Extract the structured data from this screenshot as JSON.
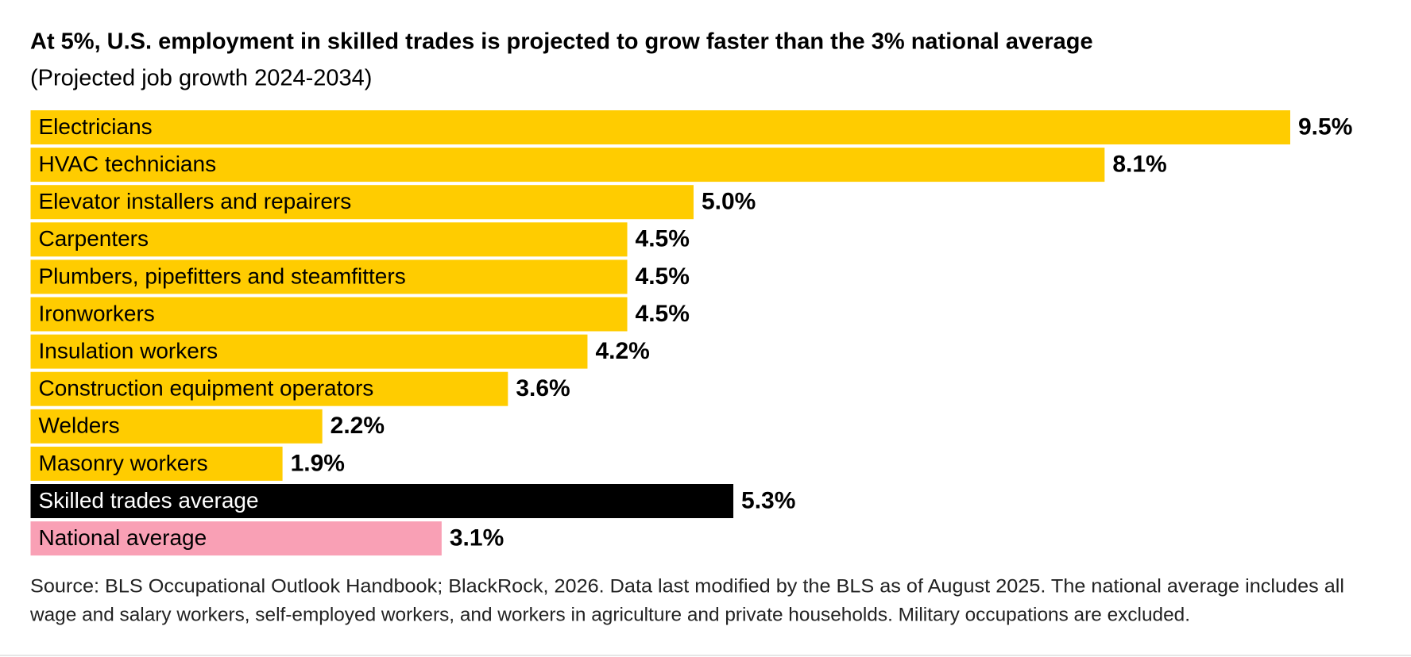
{
  "chart_data": {
    "type": "hbar",
    "title": "At 5%, U.S. employment in skilled trades is projected to grow faster than the 3% national average",
    "subtitle": "(Projected job growth 2024-2034)",
    "categories": [
      "Electricians",
      "HVAC technicians",
      "Elevator installers and repairers",
      "Carpenters",
      "Plumbers, pipefitters and steamfitters",
      "Ironworkers",
      "Insulation workers",
      "Construction equipment operators",
      "Welders",
      "Masonry workers",
      "Skilled trades average",
      "National average"
    ],
    "values": [
      9.5,
      8.1,
      5.0,
      4.5,
      4.5,
      4.5,
      4.2,
      3.6,
      2.2,
      1.9,
      5.3,
      3.1
    ],
    "value_labels": [
      "9.5%",
      "8.1%",
      "5.0%",
      "4.5%",
      "4.5%",
      "4.5%",
      "4.2%",
      "3.6%",
      "2.2%",
      "1.9%",
      "5.3%",
      "3.1%"
    ],
    "colors": [
      "#ffcc00",
      "#ffcc00",
      "#ffcc00",
      "#ffcc00",
      "#ffcc00",
      "#ffcc00",
      "#ffcc00",
      "#ffcc00",
      "#ffcc00",
      "#ffcc00",
      "#000000",
      "#f9a0b5"
    ],
    "source": [
      "Source: BLS Occupational Outlook Handbook; BlackRock, 2026. Data last modified by the BLS as of August 2025. The national average includes all",
      "wage and salary workers, self-employed workers, and workers in agriculture and private households. Military occupations are excluded."
    ]
  }
}
